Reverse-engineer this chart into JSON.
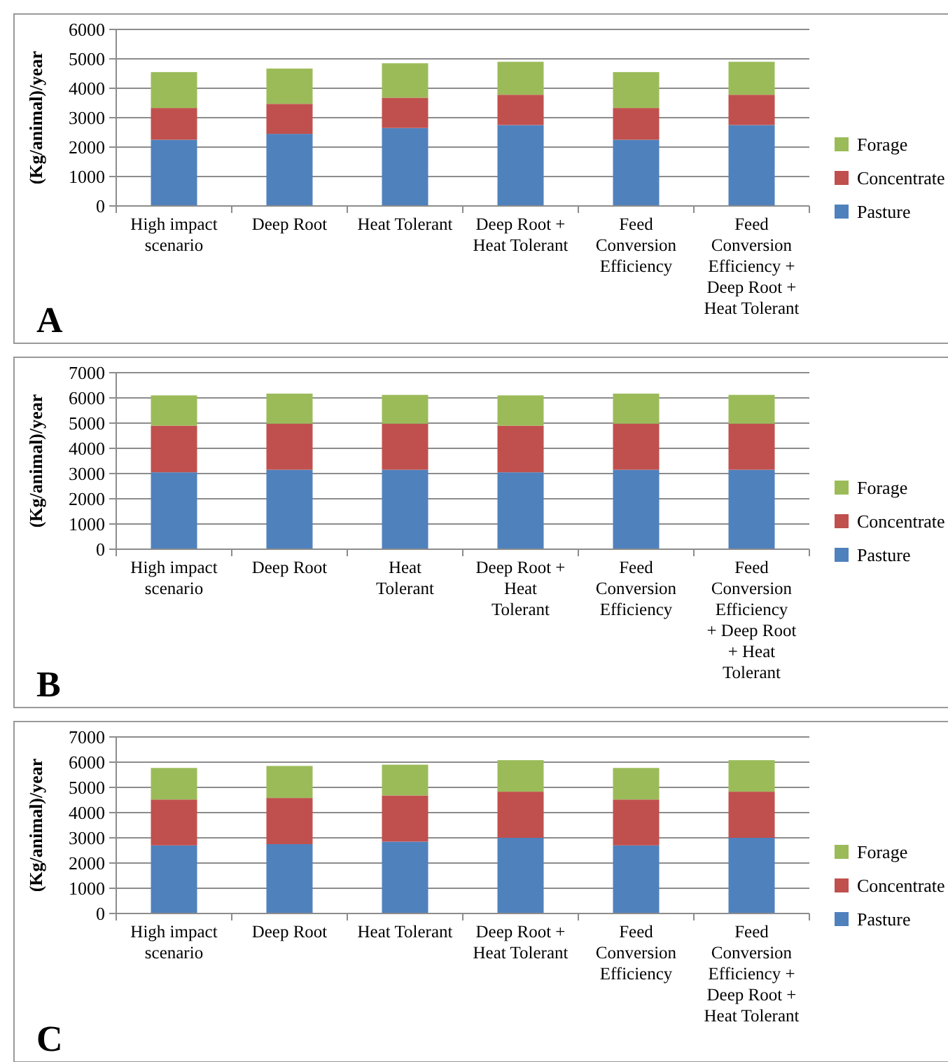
{
  "chart_data": [
    {
      "type": "bar",
      "stacked": true,
      "ylabel": "(Kg/animal)/year",
      "annotations": [
        "A"
      ],
      "legend": "right",
      "grid": "y",
      "categories": [
        "High impact scenario",
        "Deep Root",
        "Heat Tolerant",
        "Deep Root + Heat Tolerant",
        "Feed Conversion Efficiency",
        "Feed Conversion Efficiency + Deep Root + Heat Tolerant"
      ],
      "ylim": [
        0,
        6000
      ],
      "yticks": [
        0,
        1000,
        2000,
        3000,
        4000,
        5000,
        6000
      ],
      "series": [
        {
          "name": "Pasture",
          "color": "#4f81bd",
          "values": [
            2250,
            2450,
            2650,
            2750,
            2250,
            2750
          ]
        },
        {
          "name": "Concentrate",
          "color": "#c0504d",
          "values": [
            1080,
            1020,
            1030,
            1030,
            1080,
            1030
          ]
        },
        {
          "name": "Forage",
          "color": "#9bbb59",
          "values": [
            1220,
            1200,
            1170,
            1120,
            1220,
            1120
          ]
        }
      ]
    },
    {
      "type": "bar",
      "stacked": true,
      "ylabel": "(Kg/animal)/year",
      "annotations": [
        "B"
      ],
      "legend": "right",
      "grid": "y",
      "categories": [
        "High impact scenario",
        "Deep Root",
        "Heat Tolerant",
        "Deep Root + Heat Tolerant",
        "Feed Conversion Efficiency",
        "Feed Conversion Efficiency + Deep Root + Heat Tolerant"
      ],
      "ylim": [
        0,
        7000
      ],
      "yticks": [
        0,
        1000,
        2000,
        3000,
        4000,
        5000,
        6000,
        7000
      ],
      "series": [
        {
          "name": "Pasture",
          "color": "#4f81bd",
          "values": [
            3050,
            3150,
            3150,
            3050,
            3150,
            3150
          ]
        },
        {
          "name": "Concentrate",
          "color": "#c0504d",
          "values": [
            1850,
            1830,
            1830,
            1850,
            1830,
            1830
          ]
        },
        {
          "name": "Forage",
          "color": "#9bbb59",
          "values": [
            1200,
            1190,
            1140,
            1200,
            1190,
            1140
          ]
        }
      ]
    },
    {
      "type": "bar",
      "stacked": true,
      "ylabel": "(Kg/animal)/year",
      "annotations": [
        "C"
      ],
      "legend": "right",
      "grid": "y",
      "categories": [
        "High impact scenario",
        "Deep Root",
        "Heat Tolerant",
        "Deep Root + Heat Tolerant",
        "Feed Conversion Efficiency",
        "Feed Conversion Efficiency + Deep Root + Heat Tolerant"
      ],
      "ylim": [
        0,
        7000
      ],
      "yticks": [
        0,
        1000,
        2000,
        3000,
        4000,
        5000,
        6000,
        7000
      ],
      "series": [
        {
          "name": "Pasture",
          "color": "#4f81bd",
          "values": [
            2700,
            2750,
            2850,
            3000,
            2700,
            3000
          ]
        },
        {
          "name": "Concentrate",
          "color": "#c0504d",
          "values": [
            1820,
            1830,
            1830,
            1830,
            1820,
            1830
          ]
        },
        {
          "name": "Forage",
          "color": "#9bbb59",
          "values": [
            1250,
            1270,
            1220,
            1250,
            1250,
            1250
          ]
        }
      ]
    }
  ]
}
